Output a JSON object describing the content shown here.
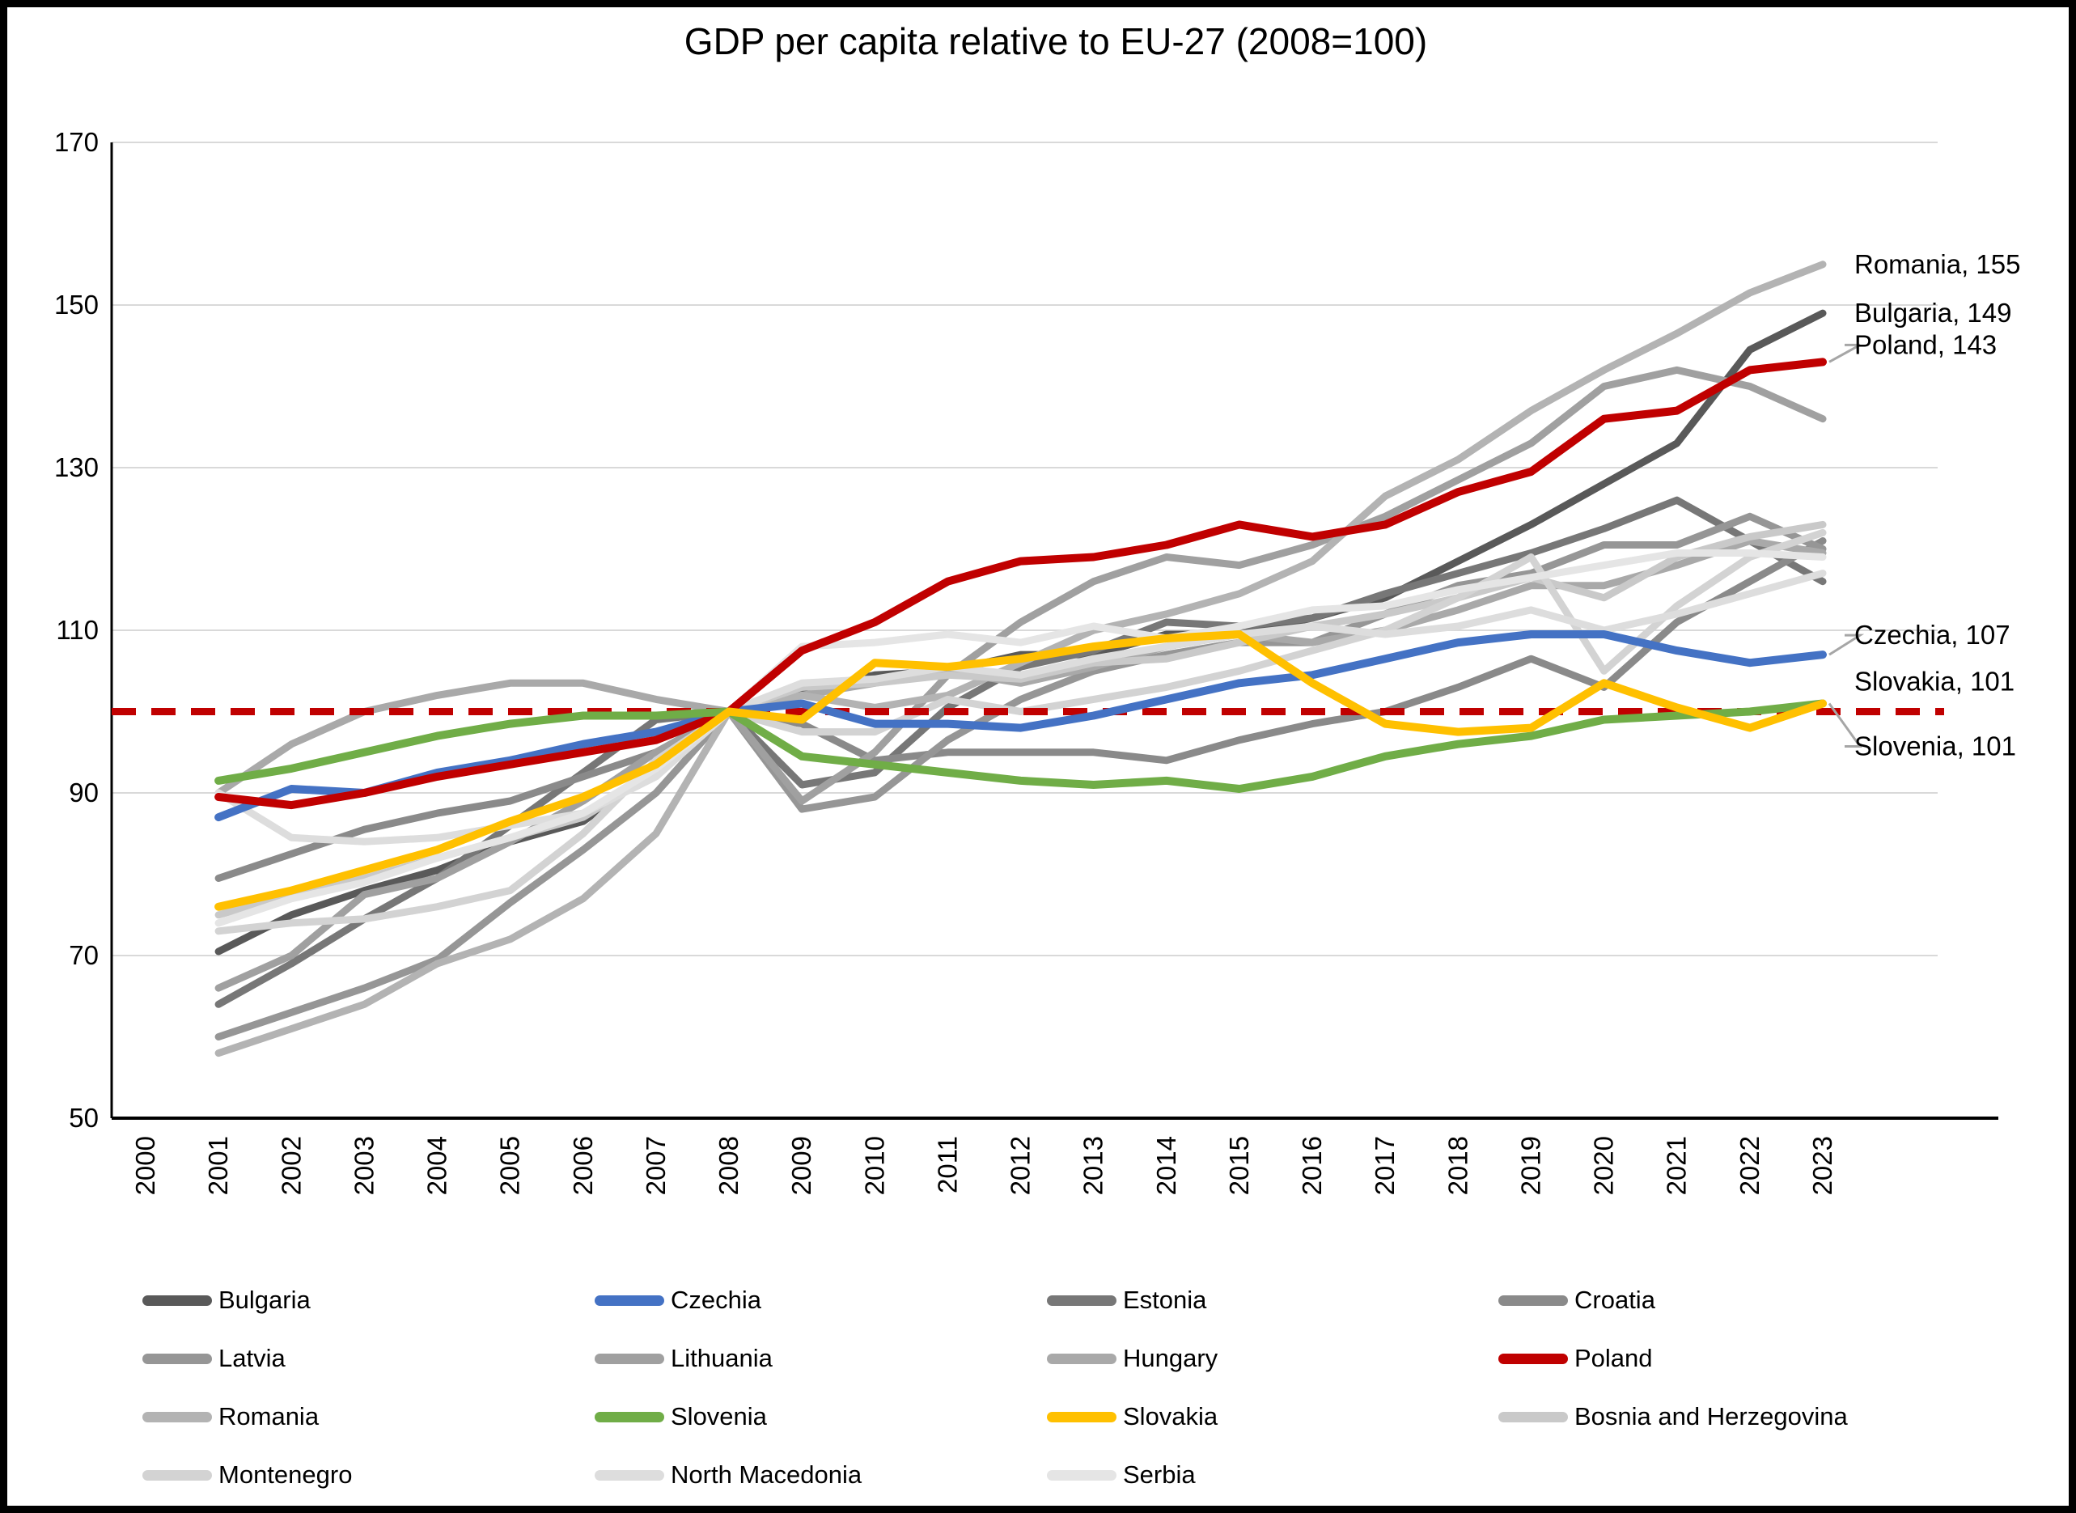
{
  "title": "GDP per capita relative to EU-27 (2008=100)",
  "chart_data": {
    "type": "line",
    "title": "GDP per capita relative to EU-27 (2008=100)",
    "xlabel": "",
    "ylabel": "",
    "ylim": [
      50,
      170
    ],
    "y_ticks": [
      50,
      70,
      90,
      110,
      130,
      150,
      170
    ],
    "x_ticks": [
      2000,
      2001,
      2002,
      2003,
      2004,
      2005,
      2006,
      2007,
      2008,
      2009,
      2010,
      2011,
      2012,
      2013,
      2014,
      2015,
      2016,
      2017,
      2018,
      2019,
      2020,
      2021,
      2022,
      2023
    ],
    "x": [
      2001,
      2002,
      2003,
      2004,
      2005,
      2006,
      2007,
      2008,
      2009,
      2010,
      2011,
      2012,
      2013,
      2014,
      2015,
      2016,
      2017,
      2018,
      2019,
      2020,
      2021,
      2022,
      2023
    ],
    "grid": "horizontal",
    "reference_line": {
      "value": 100,
      "color": "#c00000",
      "style": "dashed"
    },
    "series": [
      {
        "name": "Bulgaria",
        "color": "#595959",
        "front": false,
        "values": [
          70.5,
          75,
          78,
          80.5,
          84,
          86.5,
          93,
          100,
          102.5,
          104.5,
          105,
          107,
          107,
          109.5,
          109.5,
          111.5,
          114,
          118.5,
          123,
          128,
          133,
          144.5,
          149
        ]
      },
      {
        "name": "Czechia",
        "color": "#4472c4",
        "front": true,
        "values": [
          87,
          90.5,
          90,
          92.5,
          94,
          96,
          97.5,
          100,
          101,
          98.5,
          98.5,
          98,
          99.5,
          101.5,
          103.5,
          104.5,
          106.5,
          108.5,
          109.5,
          109.5,
          107.5,
          106,
          107
        ]
      },
      {
        "name": "Estonia",
        "color": "#777777",
        "front": false,
        "values": [
          64,
          69,
          74.5,
          79.5,
          86,
          92.5,
          99,
          100,
          91,
          92.5,
          100.5,
          105.5,
          107.5,
          111,
          110.5,
          111.5,
          114.5,
          117,
          119.5,
          122.5,
          126,
          121,
          116
        ]
      },
      {
        "name": "Croatia",
        "color": "#8a8a8a",
        "front": false,
        "values": [
          79.5,
          82.5,
          85.5,
          87.5,
          89,
          92,
          95,
          100,
          98.5,
          94,
          95,
          95,
          95,
          94,
          96.5,
          98.5,
          100,
          103,
          106.5,
          103,
          111,
          116,
          121
        ]
      },
      {
        "name": "Latvia",
        "color": "#969696",
        "front": false,
        "values": [
          60,
          63,
          66,
          69.5,
          76.5,
          83,
          90,
          100,
          88,
          89.5,
          96.5,
          101.5,
          105,
          107,
          108.5,
          108.5,
          112,
          115.5,
          117,
          120.5,
          120.5,
          124,
          120
        ]
      },
      {
        "name": "Lithuania",
        "color": "#a0a0a0",
        "front": false,
        "values": [
          66,
          70,
          77.5,
          79.5,
          84,
          89,
          95,
          100,
          89,
          95,
          104.5,
          111,
          116,
          119,
          118,
          120.5,
          124,
          128.5,
          133,
          140,
          142,
          140,
          136
        ]
      },
      {
        "name": "Hungary",
        "color": "#a9a9a9",
        "front": false,
        "values": [
          90,
          96,
          100,
          102,
          103.5,
          103.5,
          101.5,
          100,
          102,
          103.5,
          105,
          103.5,
          105.5,
          108,
          109.5,
          108.5,
          110,
          112.5,
          115.5,
          115.5,
          118,
          121,
          119.5
        ]
      },
      {
        "name": "Poland",
        "color": "#c00000",
        "front": true,
        "values": [
          89.5,
          88.5,
          90,
          92,
          93.5,
          95,
          96.5,
          100,
          107.5,
          111,
          116,
          118.5,
          119,
          120.5,
          123,
          121.5,
          123,
          127,
          129.5,
          136,
          137,
          142,
          143
        ]
      },
      {
        "name": "Romania",
        "color": "#b3b3b3",
        "front": false,
        "values": [
          58,
          61,
          64,
          69,
          72,
          77,
          85,
          100,
          102,
          100.5,
          102,
          106,
          110,
          112,
          114.5,
          118.5,
          126.5,
          131,
          137,
          142,
          146.5,
          151.5,
          155
        ]
      },
      {
        "name": "Slovenia",
        "color": "#70ad47",
        "front": true,
        "values": [
          91.5,
          93,
          95,
          97,
          98.5,
          99.5,
          99.5,
          100,
          94.5,
          93.5,
          92.5,
          91.5,
          91,
          91.5,
          90.5,
          92,
          94.5,
          96,
          97,
          99,
          99.5,
          100,
          101
        ]
      },
      {
        "name": "Slovakia",
        "color": "#ffc000",
        "front": true,
        "values": [
          76,
          78,
          80.5,
          83,
          86.5,
          89.5,
          93.5,
          100,
          99,
          106,
          105.5,
          106.5,
          108,
          109,
          109.5,
          103.5,
          98.5,
          97.5,
          98,
          103.5,
          100.5,
          98,
          101
        ]
      },
      {
        "name": "Bosnia and Herzegovina",
        "color": "#c9c9c9",
        "front": false,
        "values": [
          75,
          77.5,
          79.5,
          82,
          84.5,
          87,
          92.5,
          100,
          103,
          103.5,
          104.5,
          104,
          106,
          106.5,
          108.5,
          110.5,
          112,
          114,
          116.5,
          114,
          119,
          121.5,
          123
        ]
      },
      {
        "name": "Montenegro",
        "color": "#d3d3d3",
        "front": false,
        "values": [
          73,
          74,
          74.5,
          76,
          78,
          85,
          94,
          100,
          97.5,
          97.5,
          101.5,
          100,
          101.5,
          103,
          105,
          107.5,
          110,
          114,
          119,
          105,
          113,
          119,
          122
        ]
      },
      {
        "name": "North Macedonia",
        "color": "#dddddd",
        "front": false,
        "values": [
          90,
          84.5,
          84,
          84.5,
          86,
          87.5,
          92,
          100,
          103.5,
          104,
          105.5,
          104.5,
          106.5,
          108,
          109.5,
          110.5,
          109.5,
          110.5,
          112.5,
          110,
          112,
          114.5,
          117
        ]
      },
      {
        "name": "Serbia",
        "color": "#e5e5e5",
        "front": false,
        "values": [
          74,
          77,
          79,
          82,
          84.5,
          87.5,
          93,
          100,
          108,
          108.5,
          109.5,
          108.5,
          110.5,
          109,
          110.5,
          112.5,
          113,
          115,
          116.5,
          118,
          119.5,
          119.5,
          119
        ]
      }
    ],
    "end_labels": [
      {
        "series": "Romania",
        "text": "Romania, 155",
        "dy": 0,
        "leader": false
      },
      {
        "series": "Bulgaria",
        "text": "Bulgaria, 149",
        "dy": 0,
        "leader": false
      },
      {
        "series": "Poland",
        "text": "Poland, 143",
        "dy": -21,
        "leader": true
      },
      {
        "series": "Czechia",
        "text": "Czechia, 107",
        "dy": -24,
        "leader": true
      },
      {
        "series": "Slovakia",
        "text": "Slovakia, 101",
        "dy": -27,
        "leader": false
      },
      {
        "series": "Slovenia",
        "text": "Slovenia, 101",
        "dy": 53,
        "leader": true
      }
    ],
    "legend": [
      "Bulgaria",
      "Czechia",
      "Estonia",
      "Croatia",
      "Latvia",
      "Lithuania",
      "Hungary",
      "Poland",
      "Romania",
      "Slovenia",
      "Slovakia",
      "Bosnia and Herzegovina",
      "Montenegro",
      "North Macedonia",
      "Serbia"
    ],
    "legend_position": "bottom"
  }
}
